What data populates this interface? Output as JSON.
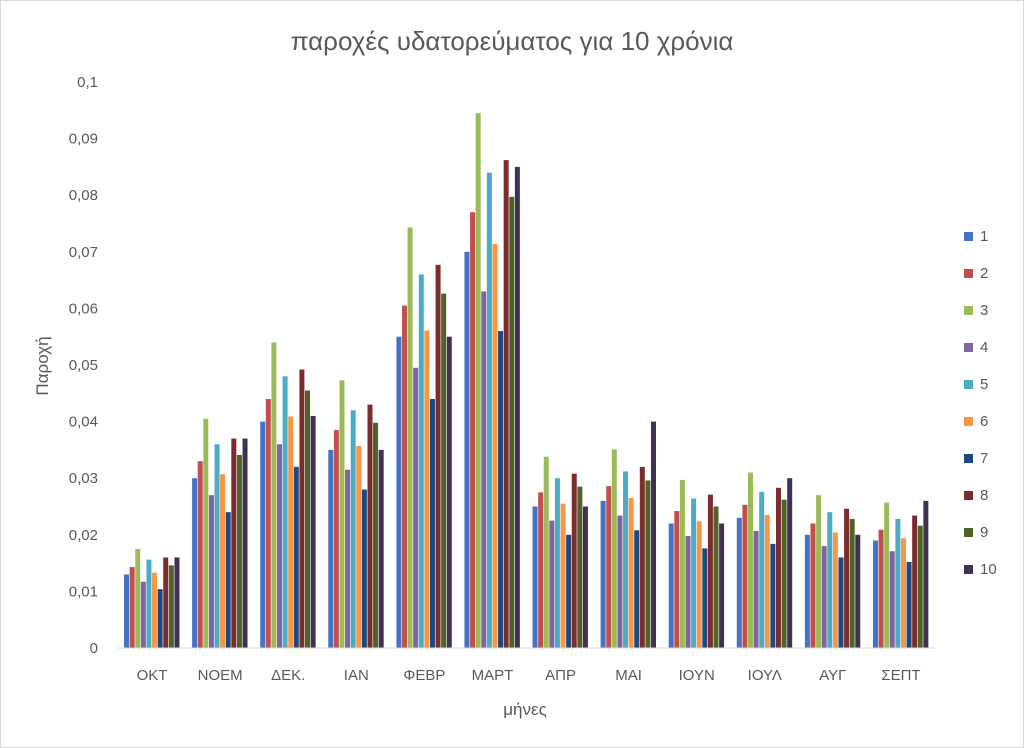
{
  "chart_data": {
    "type": "bar",
    "title": "παροχές υδατορεύματος για 10 χρόνια",
    "xlabel": "μήνες",
    "ylabel": "Παροχή",
    "ylim": [
      0,
      0.1
    ],
    "yticks": [
      0,
      0.01,
      0.02,
      0.03,
      0.04,
      0.05,
      0.06,
      0.07,
      0.08,
      0.09,
      0.1
    ],
    "ytick_labels": [
      "0",
      "0,01",
      "0,02",
      "0,03",
      "0,04",
      "0,05",
      "0,06",
      "0,07",
      "0,08",
      "0,09",
      "0,1"
    ],
    "grid": false,
    "legend_position": "right",
    "categories": [
      "ΟΚΤ",
      "ΝΟΕΜ",
      "ΔΕΚ.",
      "ΙΑΝ",
      "ΦΕΒΡ",
      "ΜΑΡΤ",
      "ΑΠΡ",
      "ΜΑΙ",
      "ΙΟΥΝ",
      "ΙΟΥΛ",
      "ΑΥΓ",
      "ΣΕΠΤ"
    ],
    "series": [
      {
        "name": "1",
        "color": "#4472c4",
        "values": [
          0.013,
          0.03,
          0.04,
          0.035,
          0.055,
          0.07,
          0.025,
          0.026,
          0.022,
          0.023,
          0.02,
          0.019
        ]
      },
      {
        "name": "2",
        "color": "#c0504d",
        "values": [
          0.0143,
          0.033,
          0.044,
          0.0385,
          0.0605,
          0.077,
          0.0275,
          0.0286,
          0.0242,
          0.0253,
          0.022,
          0.0209
        ]
      },
      {
        "name": "3",
        "color": "#9bbb59",
        "values": [
          0.0175,
          0.0405,
          0.054,
          0.0473,
          0.0743,
          0.0945,
          0.0338,
          0.0351,
          0.0297,
          0.031,
          0.027,
          0.0257
        ]
      },
      {
        "name": "4",
        "color": "#8064a2",
        "values": [
          0.0117,
          0.027,
          0.036,
          0.0315,
          0.0495,
          0.063,
          0.0225,
          0.0234,
          0.0198,
          0.0207,
          0.018,
          0.0171
        ]
      },
      {
        "name": "5",
        "color": "#4bacc6",
        "values": [
          0.0156,
          0.036,
          0.048,
          0.042,
          0.066,
          0.084,
          0.03,
          0.0312,
          0.0264,
          0.0276,
          0.024,
          0.0228
        ]
      },
      {
        "name": "6",
        "color": "#f79646",
        "values": [
          0.0133,
          0.0307,
          0.0409,
          0.0357,
          0.0561,
          0.0714,
          0.0255,
          0.0265,
          0.0224,
          0.0235,
          0.0204,
          0.0194
        ]
      },
      {
        "name": "7",
        "color": "#1f497d",
        "values": [
          0.0104,
          0.024,
          0.032,
          0.028,
          0.044,
          0.056,
          0.02,
          0.0208,
          0.0176,
          0.0184,
          0.016,
          0.0152
        ]
      },
      {
        "name": "8",
        "color": "#7b2c2c",
        "values": [
          0.016,
          0.037,
          0.0492,
          0.043,
          0.0677,
          0.0862,
          0.0308,
          0.032,
          0.0271,
          0.0283,
          0.0246,
          0.0234
        ]
      },
      {
        "name": "9",
        "color": "#4f6228",
        "values": [
          0.0146,
          0.0341,
          0.0455,
          0.0398,
          0.0626,
          0.0797,
          0.0285,
          0.0296,
          0.025,
          0.0262,
          0.0228,
          0.0216
        ]
      },
      {
        "name": "10",
        "color": "#403152",
        "values": [
          0.016,
          0.037,
          0.041,
          0.035,
          0.055,
          0.085,
          0.025,
          0.04,
          0.022,
          0.03,
          0.02,
          0.026
        ]
      }
    ]
  }
}
